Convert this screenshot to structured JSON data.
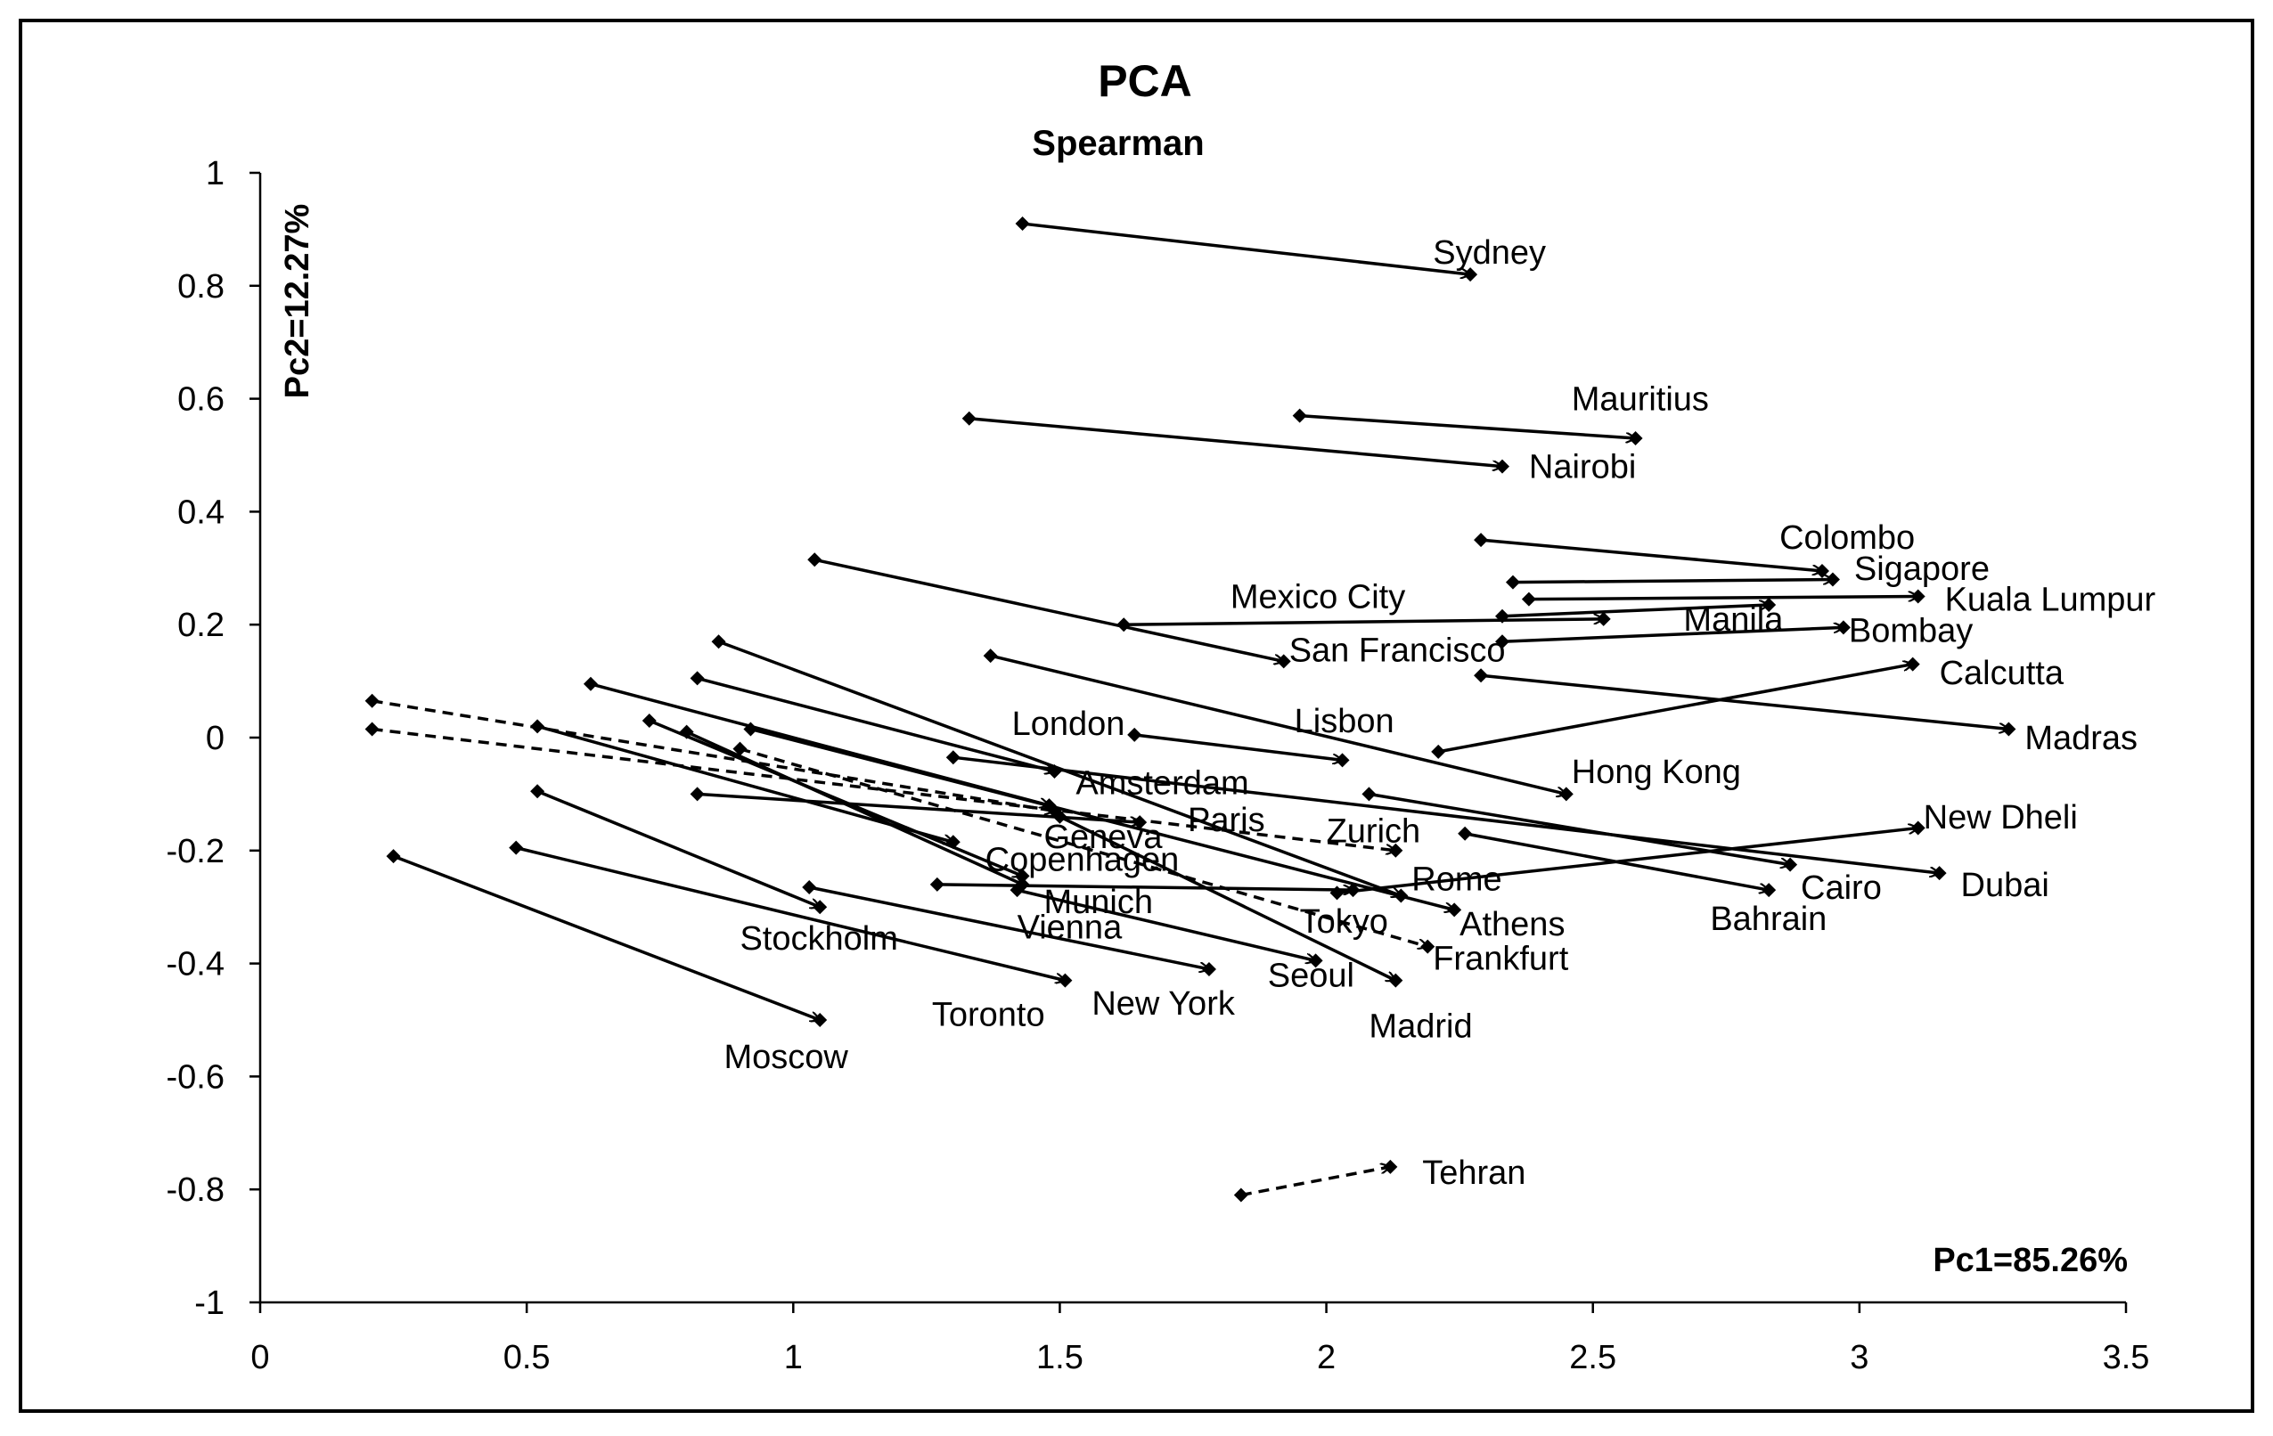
{
  "chart_data": {
    "type": "scatter",
    "title": "PCA",
    "subtitle": "Spearman",
    "xlabel": "Pc1=85.26%",
    "ylabel": "Pc2=12.27%",
    "xlim": [
      0,
      3.5
    ],
    "ylim": [
      -1,
      1
    ],
    "x_ticks": [
      {
        "value": 0,
        "label": "0"
      },
      {
        "value": 0.5,
        "label": "0.5"
      },
      {
        "value": 1,
        "label": "1"
      },
      {
        "value": 1.5,
        "label": "1.5"
      },
      {
        "value": 2,
        "label": "2"
      },
      {
        "value": 2.5,
        "label": "2.5"
      },
      {
        "value": 3,
        "label": "3"
      },
      {
        "value": 3.5,
        "label": "3.5"
      }
    ],
    "y_ticks": [
      {
        "value": 1,
        "label": "1"
      },
      {
        "value": 0.8,
        "label": "0.8"
      },
      {
        "value": 0.6,
        "label": "0.6"
      },
      {
        "value": 0.4,
        "label": "0.4"
      },
      {
        "value": 0.2,
        "label": "0.2"
      },
      {
        "value": 0,
        "label": "0"
      },
      {
        "value": -0.2,
        "label": "-0.2"
      },
      {
        "value": -0.4,
        "label": "-0.4"
      },
      {
        "value": -0.6,
        "label": "-0.6"
      },
      {
        "value": -0.8,
        "label": "-0.8"
      },
      {
        "value": -1,
        "label": "-1"
      }
    ],
    "grid": false,
    "marker": "diamond",
    "color": "#000000",
    "arrows": [
      {
        "city": "Sydney",
        "from": [
          1.43,
          0.91
        ],
        "to": [
          2.27,
          0.82
        ],
        "style": "solid"
      },
      {
        "city": "Mauritius",
        "from": [
          1.95,
          0.57
        ],
        "to": [
          2.58,
          0.53
        ],
        "style": "solid"
      },
      {
        "city": "Nairobi",
        "from": [
          1.33,
          0.565
        ],
        "to": [
          2.33,
          0.48
        ],
        "style": "solid"
      },
      {
        "city": "Colombo",
        "from": [
          2.29,
          0.35
        ],
        "to": [
          2.93,
          0.295
        ],
        "style": "solid"
      },
      {
        "city": "Sigapore",
        "from": [
          2.35,
          0.275
        ],
        "to": [
          2.95,
          0.28
        ],
        "style": "solid"
      },
      {
        "city": "Kuala Lumpur",
        "from": [
          2.38,
          0.245
        ],
        "to": [
          3.11,
          0.25
        ],
        "style": "solid"
      },
      {
        "city": "Manila",
        "from": [
          2.33,
          0.215
        ],
        "to": [
          2.83,
          0.235
        ],
        "style": "solid"
      },
      {
        "city": "Mexico City",
        "from": [
          1.62,
          0.2
        ],
        "to": [
          2.52,
          0.21
        ],
        "style": "solid"
      },
      {
        "city": "Bombay",
        "from": [
          2.33,
          0.17
        ],
        "to": [
          2.97,
          0.195
        ],
        "style": "solid"
      },
      {
        "city": "San Francisco",
        "from": [
          1.04,
          0.315
        ],
        "to": [
          1.92,
          0.135
        ],
        "style": "solid"
      },
      {
        "city": "Calcutta",
        "from": [
          2.21,
          -0.025
        ],
        "to": [
          3.1,
          0.13
        ],
        "style": "solid"
      },
      {
        "city": "Madras",
        "from": [
          2.29,
          0.11
        ],
        "to": [
          3.28,
          0.015
        ],
        "style": "solid"
      },
      {
        "city": "Hong Kong",
        "from": [
          1.37,
          0.145
        ],
        "to": [
          2.45,
          -0.1
        ],
        "style": "solid"
      },
      {
        "city": "Lisbon",
        "from": [
          1.64,
          0.005
        ],
        "to": [
          2.03,
          -0.04
        ],
        "style": "solid"
      },
      {
        "city": "London",
        "from": [
          0.82,
          0.105
        ],
        "to": [
          1.49,
          -0.06
        ],
        "style": "solid"
      },
      {
        "city": "Amsterdam",
        "from": [
          0.62,
          0.095
        ],
        "to": [
          1.48,
          -0.12
        ],
        "style": "solid"
      },
      {
        "city": "Zurich",
        "from": [
          0.21,
          0.065
        ],
        "to": [
          1.49,
          -0.13
        ],
        "style": "dashed"
      },
      {
        "city": "Paris",
        "from": [
          0.21,
          0.015
        ],
        "to": [
          2.13,
          -0.2
        ],
        "style": "dashed"
      },
      {
        "city": "Geneva",
        "from": [
          0.82,
          -0.1
        ],
        "to": [
          1.65,
          -0.15
        ],
        "style": "solid"
      },
      {
        "city": "Copenhagen",
        "from": [
          0.52,
          0.02
        ],
        "to": [
          1.3,
          -0.185
        ],
        "style": "solid"
      },
      {
        "city": "New Dheli",
        "from": [
          2.02,
          -0.275
        ],
        "to": [
          3.11,
          -0.16
        ],
        "style": "solid"
      },
      {
        "city": "Dubai",
        "from": [
          1.3,
          -0.035
        ],
        "to": [
          3.15,
          -0.24
        ],
        "style": "solid"
      },
      {
        "city": "Cairo",
        "from": [
          2.08,
          -0.1
        ],
        "to": [
          2.87,
          -0.225
        ],
        "style": "solid"
      },
      {
        "city": "Bahrain",
        "from": [
          2.26,
          -0.17
        ],
        "to": [
          2.83,
          -0.27
        ],
        "style": "solid"
      },
      {
        "city": "Rome",
        "from": [
          0.86,
          0.17
        ],
        "to": [
          2.14,
          -0.28
        ],
        "style": "solid"
      },
      {
        "city": "Athens",
        "from": [
          0.92,
          0.015
        ],
        "to": [
          2.24,
          -0.305
        ],
        "style": "solid"
      },
      {
        "city": "Munich",
        "from": [
          0.73,
          0.03
        ],
        "to": [
          1.43,
          -0.245
        ],
        "style": "solid"
      },
      {
        "city": "Vienna",
        "from": [
          0.8,
          0.01
        ],
        "to": [
          1.43,
          -0.26
        ],
        "style": "solid"
      },
      {
        "city": "Tokyo",
        "from": [
          1.27,
          -0.26
        ],
        "to": [
          2.05,
          -0.27
        ],
        "style": "solid"
      },
      {
        "city": "Frankfurt",
        "from": [
          0.9,
          -0.02
        ],
        "to": [
          2.19,
          -0.37
        ],
        "style": "dashed"
      },
      {
        "city": "Stockholm",
        "from": [
          0.52,
          -0.095
        ],
        "to": [
          1.05,
          -0.3
        ],
        "style": "solid"
      },
      {
        "city": "Seoul",
        "from": [
          1.42,
          -0.27
        ],
        "to": [
          1.98,
          -0.395
        ],
        "style": "solid"
      },
      {
        "city": "Madrid",
        "from": [
          1.5,
          -0.14
        ],
        "to": [
          2.13,
          -0.43
        ],
        "style": "solid"
      },
      {
        "city": "New York",
        "from": [
          1.03,
          -0.265
        ],
        "to": [
          1.78,
          -0.41
        ],
        "style": "solid"
      },
      {
        "city": "Toronto",
        "from": [
          0.48,
          -0.195
        ],
        "to": [
          1.51,
          -0.43
        ],
        "style": "solid"
      },
      {
        "city": "Moscow",
        "from": [
          0.25,
          -0.21
        ],
        "to": [
          1.05,
          -0.5
        ],
        "style": "solid"
      },
      {
        "city": "Tehran",
        "from": [
          1.84,
          -0.81
        ],
        "to": [
          2.12,
          -0.76
        ],
        "style": "dashed"
      }
    ],
    "labels": [
      {
        "text": "Sydney",
        "x": 2.2,
        "y": 0.86
      },
      {
        "text": "Mauritius",
        "x": 2.46,
        "y": 0.6
      },
      {
        "text": "Nairobi",
        "x": 2.38,
        "y": 0.48
      },
      {
        "text": "Colombo",
        "x": 2.85,
        "y": 0.355
      },
      {
        "text": "Sigapore",
        "x": 2.99,
        "y": 0.3
      },
      {
        "text": "Kuala Lumpur",
        "x": 3.16,
        "y": 0.245
      },
      {
        "text": "Manila",
        "x": 2.67,
        "y": 0.21
      },
      {
        "text": "Mexico City",
        "x": 1.82,
        "y": 0.25
      },
      {
        "text": "Bombay",
        "x": 2.98,
        "y": 0.19
      },
      {
        "text": "San Francisco",
        "x": 1.93,
        "y": 0.155
      },
      {
        "text": "Calcutta",
        "x": 3.15,
        "y": 0.115
      },
      {
        "text": "Madras",
        "x": 3.31,
        "y": 0.0
      },
      {
        "text": "Hong Kong",
        "x": 2.46,
        "y": -0.06
      },
      {
        "text": "Lisbon",
        "x": 1.94,
        "y": 0.03
      },
      {
        "text": "London",
        "x": 1.41,
        "y": 0.025
      },
      {
        "text": "Amsterdam",
        "x": 1.53,
        "y": -0.08
      },
      {
        "text": "Zurich",
        "x": 2.0,
        "y": -0.165
      },
      {
        "text": "Paris",
        "x": 1.74,
        "y": -0.145
      },
      {
        "text": "Geneva",
        "x": 1.47,
        "y": -0.175
      },
      {
        "text": "Copenhagen",
        "x": 1.36,
        "y": -0.215
      },
      {
        "text": "New Dheli",
        "x": 3.12,
        "y": -0.14
      },
      {
        "text": "Dubai",
        "x": 3.19,
        "y": -0.26
      },
      {
        "text": "Cairo",
        "x": 2.89,
        "y": -0.265
      },
      {
        "text": "Bahrain",
        "x": 2.72,
        "y": -0.32
      },
      {
        "text": "Rome",
        "x": 2.16,
        "y": -0.25
      },
      {
        "text": "Athens",
        "x": 2.25,
        "y": -0.33
      },
      {
        "text": "Munich",
        "x": 1.47,
        "y": -0.29
      },
      {
        "text": "Vienna",
        "x": 1.42,
        "y": -0.335
      },
      {
        "text": "Tokyo",
        "x": 1.95,
        "y": -0.325
      },
      {
        "text": "Frankfurt",
        "x": 2.2,
        "y": -0.39
      },
      {
        "text": "Stockholm",
        "x": 0.9,
        "y": -0.355
      },
      {
        "text": "Seoul",
        "x": 1.89,
        "y": -0.42
      },
      {
        "text": "Madrid",
        "x": 2.08,
        "y": -0.51
      },
      {
        "text": "New York",
        "x": 1.56,
        "y": -0.47
      },
      {
        "text": "Toronto",
        "x": 1.26,
        "y": -0.49
      },
      {
        "text": "Moscow",
        "x": 0.87,
        "y": -0.565
      },
      {
        "text": "Tehran",
        "x": 2.18,
        "y": -0.77
      }
    ]
  }
}
